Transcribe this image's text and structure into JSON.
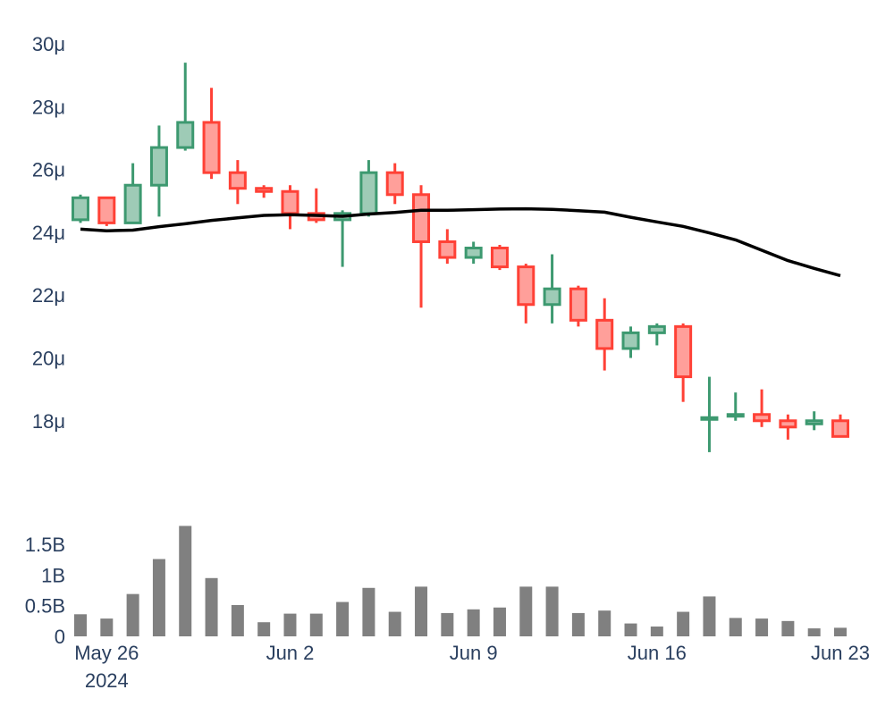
{
  "chart_data": [
    {
      "type": "candlestick",
      "x": [
        "2024-05-25",
        "2024-05-26",
        "2024-05-27",
        "2024-05-28",
        "2024-05-29",
        "2024-05-30",
        "2024-05-31",
        "2024-06-01",
        "2024-06-02",
        "2024-06-03",
        "2024-06-04",
        "2024-06-05",
        "2024-06-06",
        "2024-06-07",
        "2024-06-08",
        "2024-06-09",
        "2024-06-10",
        "2024-06-11",
        "2024-06-12",
        "2024-06-13",
        "2024-06-14",
        "2024-06-15",
        "2024-06-16",
        "2024-06-17",
        "2024-06-18",
        "2024-06-19",
        "2024-06-20",
        "2024-06-21",
        "2024-06-22",
        "2024-06-23"
      ],
      "open": [
        24.4,
        25.1,
        24.3,
        25.5,
        26.7,
        27.5,
        25.9,
        25.4,
        25.3,
        24.6,
        24.4,
        24.6,
        25.9,
        25.2,
        23.7,
        23.2,
        23.5,
        22.9,
        21.7,
        22.2,
        21.2,
        20.3,
        20.8,
        21.0,
        18.1,
        18.2,
        18.2,
        18.0,
        17.9,
        18.0
      ],
      "high": [
        25.2,
        25.1,
        26.2,
        27.4,
        29.4,
        28.6,
        26.3,
        25.5,
        25.5,
        25.4,
        24.7,
        26.3,
        26.2,
        25.5,
        24.1,
        23.7,
        23.6,
        23.0,
        23.3,
        22.3,
        21.9,
        21.0,
        21.1,
        21.1,
        19.4,
        18.9,
        19.0,
        18.2,
        18.3,
        18.2
      ],
      "low": [
        24.3,
        24.2,
        24.3,
        24.5,
        26.6,
        25.7,
        24.9,
        25.1,
        24.1,
        24.3,
        22.9,
        24.5,
        24.9,
        21.6,
        23.0,
        23.0,
        22.8,
        21.1,
        21.1,
        21.0,
        19.6,
        20.0,
        20.4,
        18.6,
        17.0,
        18.0,
        17.8,
        17.4,
        17.7,
        17.5
      ],
      "close": [
        25.1,
        24.3,
        25.5,
        26.7,
        27.5,
        25.9,
        25.4,
        25.3,
        24.6,
        24.4,
        24.6,
        25.9,
        25.2,
        23.7,
        23.2,
        23.5,
        22.9,
        21.7,
        22.2,
        21.2,
        20.3,
        20.8,
        21.0,
        19.4,
        18.1,
        18.2,
        18.0,
        17.8,
        18.0,
        17.5
      ],
      "ma_line": {
        "x": [
          "2024-05-25",
          "2024-05-26",
          "2024-05-27",
          "2024-05-28",
          "2024-05-29",
          "2024-05-30",
          "2024-05-31",
          "2024-06-01",
          "2024-06-02",
          "2024-06-03",
          "2024-06-04",
          "2024-06-05",
          "2024-06-06",
          "2024-06-07",
          "2024-06-08",
          "2024-06-09",
          "2024-06-10",
          "2024-06-11",
          "2024-06-12",
          "2024-06-13",
          "2024-06-14",
          "2024-06-15",
          "2024-06-16",
          "2024-06-17",
          "2024-06-18",
          "2024-06-19",
          "2024-06-20",
          "2024-06-21",
          "2024-06-22",
          "2024-06-23"
        ],
        "y": [
          24.1,
          24.05,
          24.07,
          24.18,
          24.27,
          24.38,
          24.46,
          24.54,
          24.56,
          24.54,
          24.51,
          24.58,
          24.63,
          24.7,
          24.7,
          24.72,
          24.74,
          24.75,
          24.73,
          24.69,
          24.64,
          24.48,
          24.33,
          24.19,
          23.98,
          23.76,
          23.43,
          23.1,
          22.85,
          22.62
        ],
        "color": "#000000"
      },
      "y_ticks": [
        18,
        20,
        22,
        24,
        26,
        28,
        30
      ],
      "y_tick_labels": [
        "18μ",
        "20μ",
        "22μ",
        "24μ",
        "26μ",
        "28μ",
        "30μ"
      ],
      "ylim": [
        16.4,
        30.6
      ],
      "increasing_color": "#3d9970",
      "increasing_fill": "#9ecbb6",
      "decreasing_color": "#ff4136",
      "decreasing_fill": "#ff9f9a",
      "grid": false
    },
    {
      "type": "bar",
      "x": [
        "2024-05-25",
        "2024-05-26",
        "2024-05-27",
        "2024-05-28",
        "2024-05-29",
        "2024-05-30",
        "2024-05-31",
        "2024-06-01",
        "2024-06-02",
        "2024-06-03",
        "2024-06-04",
        "2024-06-05",
        "2024-06-06",
        "2024-06-07",
        "2024-06-08",
        "2024-06-09",
        "2024-06-10",
        "2024-06-11",
        "2024-06-12",
        "2024-06-13",
        "2024-06-14",
        "2024-06-15",
        "2024-06-16",
        "2024-06-17",
        "2024-06-18",
        "2024-06-19",
        "2024-06-20",
        "2024-06-21",
        "2024-06-22",
        "2024-06-23"
      ],
      "values": [
        0.36,
        0.29,
        0.69,
        1.26,
        1.8,
        0.95,
        0.51,
        0.23,
        0.37,
        0.37,
        0.56,
        0.79,
        0.4,
        0.81,
        0.38,
        0.44,
        0.47,
        0.81,
        0.81,
        0.38,
        0.42,
        0.21,
        0.16,
        0.4,
        0.65,
        0.3,
        0.29,
        0.25,
        0.13,
        0.14
      ],
      "unit": "B",
      "color": "#808080",
      "y_ticks": [
        0,
        0.5,
        1,
        1.5
      ],
      "y_tick_labels": [
        "0",
        "0.5B",
        "1B",
        "1.5B"
      ],
      "ylim": [
        0,
        1.85
      ]
    }
  ],
  "x_axis": {
    "ticks": [
      "2024-05-26",
      "2024-06-02",
      "2024-06-09",
      "2024-06-16",
      "2024-06-23"
    ],
    "labels": [
      "May 26",
      "Jun 2",
      "Jun 9",
      "Jun 16",
      "Jun 23"
    ],
    "year_label": "2024"
  }
}
